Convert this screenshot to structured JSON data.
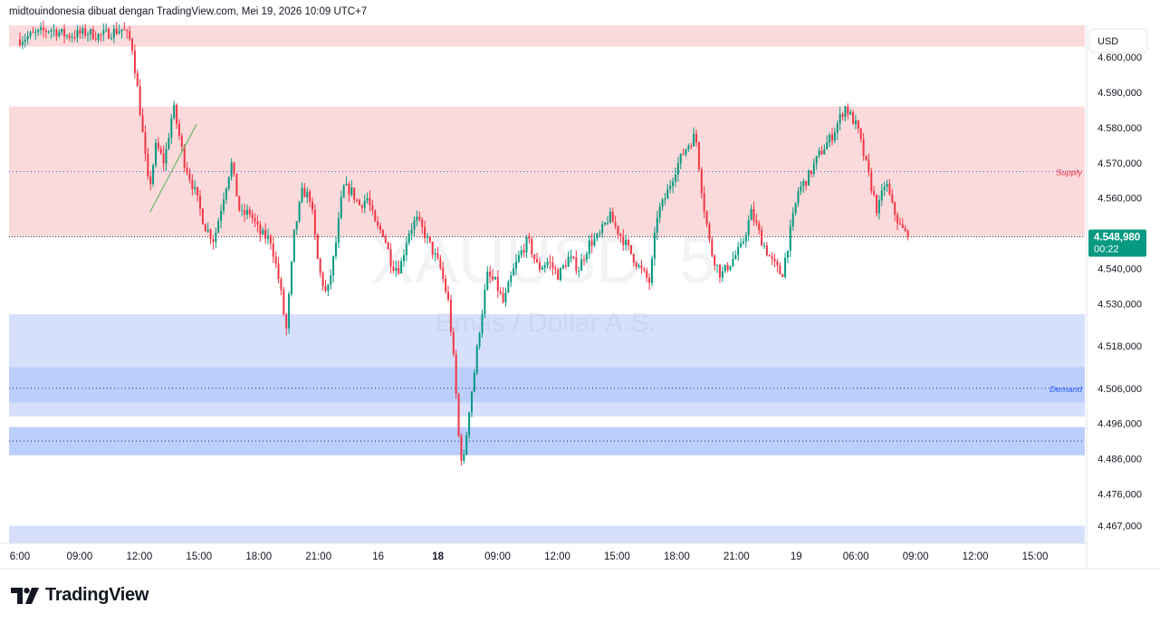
{
  "header": {
    "attribution": "midtouindonesia dibuat dengan TradingView.com, Mei 19, 2026 10:09 UTC+7"
  },
  "footer": {
    "brand": "TradingView",
    "logo_icon": "tradingview-logo-icon"
  },
  "watermark": {
    "symbol": "XAUUSD, 5",
    "description": "Emas / Dollar A.S."
  },
  "colors": {
    "up": "#089981",
    "down": "#f23645",
    "supply_zone": "#fbdadb",
    "demand_zone": "#d6e0fd",
    "demand_zone_core": "#bccefb",
    "supply_line": "#3d5afe",
    "demand_line": "#1a237e",
    "trendline": "#66bb6a",
    "price_badge": "#089981"
  },
  "chart_data": {
    "type": "candlestick",
    "symbol": "XAUUSD",
    "timeframe": "5",
    "currency": "USD",
    "ylim": [
      4462,
      4609
    ],
    "y_ticks": [
      {
        "value": 4600,
        "label": "4.600,000"
      },
      {
        "value": 4590,
        "label": "4.590,000"
      },
      {
        "value": 4580,
        "label": "4.580,000"
      },
      {
        "value": 4570,
        "label": "4.570,000"
      },
      {
        "value": 4560,
        "label": "4.560,000"
      },
      {
        "value": 4540,
        "label": "4.540,000"
      },
      {
        "value": 4530,
        "label": "4.530,000"
      },
      {
        "value": 4518,
        "label": "4.518,000"
      },
      {
        "value": 4506,
        "label": "4.506,000"
      },
      {
        "value": 4496,
        "label": "4.496,000"
      },
      {
        "value": 4486,
        "label": "4.486,000"
      },
      {
        "value": 4476,
        "label": "4.476,000"
      },
      {
        "value": 4467,
        "label": "4.467,000"
      }
    ],
    "x_ticks": [
      {
        "label": "6:00",
        "bold": false
      },
      {
        "label": "09:00",
        "bold": false
      },
      {
        "label": "12:00",
        "bold": false
      },
      {
        "label": "15:00",
        "bold": false
      },
      {
        "label": "18:00",
        "bold": false
      },
      {
        "label": "21:00",
        "bold": false
      },
      {
        "label": "16",
        "bold": false
      },
      {
        "label": "18",
        "bold": true
      },
      {
        "label": "09:00",
        "bold": false
      },
      {
        "label": "12:00",
        "bold": false
      },
      {
        "label": "15:00",
        "bold": false
      },
      {
        "label": "18:00",
        "bold": false
      },
      {
        "label": "21:00",
        "bold": false
      },
      {
        "label": "19",
        "bold": false
      },
      {
        "label": "06:00",
        "bold": false
      },
      {
        "label": "09:00",
        "bold": false
      },
      {
        "label": "12:00",
        "bold": false
      },
      {
        "label": "15:00",
        "bold": false
      }
    ],
    "last_price": {
      "value": 4548.98,
      "label": "4.548,980",
      "countdown": "00:22"
    },
    "zones": [
      {
        "kind": "supply",
        "from": 4603,
        "to": 4612
      },
      {
        "kind": "supply",
        "from": 4549,
        "to": 4586,
        "label": "Supply",
        "line": 4567.5
      },
      {
        "kind": "demand",
        "from": 4498,
        "to": 4527,
        "label": "Demand",
        "line": 4506
      },
      {
        "kind": "demand-core",
        "from": 4502,
        "to": 4512
      },
      {
        "kind": "demand-core",
        "from": 4487,
        "to": 4495,
        "line": 4491
      },
      {
        "kind": "demand",
        "from": 4462,
        "to": 4467
      }
    ],
    "trendline": [
      {
        "t": 0.128,
        "y": 4556
      },
      {
        "t": 0.174,
        "y": 4581
      }
    ],
    "path": [
      {
        "t": 0.0,
        "p": 4605
      },
      {
        "t": 0.03,
        "p": 4608
      },
      {
        "t": 0.047,
        "p": 4606
      },
      {
        "t": 0.066,
        "p": 4607
      },
      {
        "t": 0.078,
        "p": 4606
      },
      {
        "t": 0.101,
        "p": 4608
      },
      {
        "t": 0.11,
        "p": 4604
      },
      {
        "t": 0.117,
        "p": 4588
      },
      {
        "t": 0.127,
        "p": 4562
      },
      {
        "t": 0.134,
        "p": 4575
      },
      {
        "t": 0.142,
        "p": 4570
      },
      {
        "t": 0.151,
        "p": 4586
      },
      {
        "t": 0.162,
        "p": 4570
      },
      {
        "t": 0.172,
        "p": 4562
      },
      {
        "t": 0.182,
        "p": 4552
      },
      {
        "t": 0.191,
        "p": 4548
      },
      {
        "t": 0.2,
        "p": 4560
      },
      {
        "t": 0.208,
        "p": 4570
      },
      {
        "t": 0.217,
        "p": 4555
      },
      {
        "t": 0.226,
        "p": 4556
      },
      {
        "t": 0.236,
        "p": 4550
      },
      {
        "t": 0.247,
        "p": 4548
      },
      {
        "t": 0.256,
        "p": 4535
      },
      {
        "t": 0.262,
        "p": 4522
      },
      {
        "t": 0.27,
        "p": 4550
      },
      {
        "t": 0.278,
        "p": 4562
      },
      {
        "t": 0.286,
        "p": 4560
      },
      {
        "t": 0.294,
        "p": 4540
      },
      {
        "t": 0.302,
        "p": 4532
      },
      {
        "t": 0.31,
        "p": 4545
      },
      {
        "t": 0.318,
        "p": 4563
      },
      {
        "t": 0.326,
        "p": 4562
      },
      {
        "t": 0.334,
        "p": 4558
      },
      {
        "t": 0.342,
        "p": 4560
      },
      {
        "t": 0.35,
        "p": 4552
      },
      {
        "t": 0.358,
        "p": 4550
      },
      {
        "t": 0.366,
        "p": 4541
      },
      {
        "t": 0.374,
        "p": 4540
      },
      {
        "t": 0.382,
        "p": 4550
      },
      {
        "t": 0.39,
        "p": 4554
      },
      {
        "t": 0.398,
        "p": 4550
      },
      {
        "t": 0.406,
        "p": 4545
      },
      {
        "t": 0.414,
        "p": 4540
      },
      {
        "t": 0.422,
        "p": 4530
      },
      {
        "t": 0.428,
        "p": 4510
      },
      {
        "t": 0.433,
        "p": 4487
      },
      {
        "t": 0.437,
        "p": 4486
      },
      {
        "t": 0.442,
        "p": 4500
      },
      {
        "t": 0.447,
        "p": 4510
      },
      {
        "t": 0.452,
        "p": 4522
      },
      {
        "t": 0.46,
        "p": 4538
      },
      {
        "t": 0.468,
        "p": 4536
      },
      {
        "t": 0.476,
        "p": 4530
      },
      {
        "t": 0.484,
        "p": 4538
      },
      {
        "t": 0.492,
        "p": 4544
      },
      {
        "t": 0.5,
        "p": 4548
      },
      {
        "t": 0.51,
        "p": 4540
      },
      {
        "t": 0.52,
        "p": 4542
      },
      {
        "t": 0.53,
        "p": 4538
      },
      {
        "t": 0.54,
        "p": 4543
      },
      {
        "t": 0.55,
        "p": 4540
      },
      {
        "t": 0.56,
        "p": 4547
      },
      {
        "t": 0.57,
        "p": 4549
      },
      {
        "t": 0.58,
        "p": 4555
      },
      {
        "t": 0.59,
        "p": 4550
      },
      {
        "t": 0.6,
        "p": 4545
      },
      {
        "t": 0.61,
        "p": 4540
      },
      {
        "t": 0.62,
        "p": 4536
      },
      {
        "t": 0.627,
        "p": 4555
      },
      {
        "t": 0.635,
        "p": 4560
      },
      {
        "t": 0.645,
        "p": 4568
      },
      {
        "t": 0.655,
        "p": 4574
      },
      {
        "t": 0.665,
        "p": 4578
      },
      {
        "t": 0.672,
        "p": 4560
      },
      {
        "t": 0.68,
        "p": 4545
      },
      {
        "t": 0.69,
        "p": 4538
      },
      {
        "t": 0.7,
        "p": 4542
      },
      {
        "t": 0.71,
        "p": 4546
      },
      {
        "t": 0.72,
        "p": 4556
      },
      {
        "t": 0.73,
        "p": 4548
      },
      {
        "t": 0.74,
        "p": 4542
      },
      {
        "t": 0.75,
        "p": 4538
      },
      {
        "t": 0.758,
        "p": 4550
      },
      {
        "t": 0.766,
        "p": 4562
      },
      {
        "t": 0.776,
        "p": 4566
      },
      {
        "t": 0.786,
        "p": 4572
      },
      {
        "t": 0.8,
        "p": 4578
      },
      {
        "t": 0.812,
        "p": 4586
      },
      {
        "t": 0.824,
        "p": 4580
      },
      {
        "t": 0.834,
        "p": 4568
      },
      {
        "t": 0.844,
        "p": 4556
      },
      {
        "t": 0.852,
        "p": 4565
      },
      {
        "t": 0.858,
        "p": 4558
      },
      {
        "t": 0.866,
        "p": 4552
      },
      {
        "t": 0.874,
        "p": 4548.98
      }
    ]
  }
}
